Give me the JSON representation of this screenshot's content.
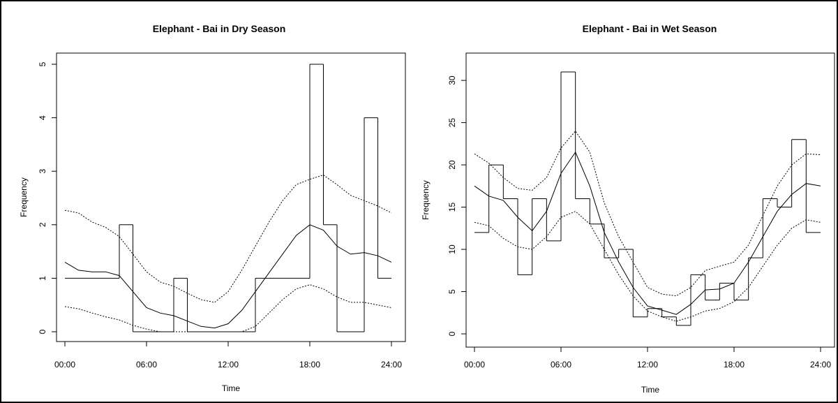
{
  "chart_data": [
    {
      "type": "line",
      "title": "Elephant - Bai in Dry Season",
      "xlabel": "Time",
      "ylabel": "Frequency",
      "xlim": [
        0,
        24
      ],
      "ylim": [
        0,
        5
      ],
      "x_tick_labels": [
        "00:00",
        "06:00",
        "12:00",
        "18:00",
        "24:00"
      ],
      "y_tick_labels": [
        "0",
        "1",
        "2",
        "3",
        "4",
        "5"
      ],
      "grid": false,
      "histogram": {
        "bin_hours": [
          0,
          1,
          2,
          3,
          4,
          5,
          6,
          7,
          8,
          9,
          10,
          11,
          12,
          13,
          14,
          15,
          16,
          17,
          18,
          19,
          20,
          21,
          22,
          23
        ],
        "values": [
          1,
          1,
          1,
          1,
          2,
          0,
          0,
          0,
          1,
          0,
          0,
          0,
          0,
          0,
          1,
          1,
          1,
          1,
          5,
          2,
          0,
          0,
          4,
          1
        ]
      },
      "series": [
        {
          "role": "fitted",
          "x": [
            0,
            1,
            2,
            3,
            4,
            5,
            6,
            7,
            8,
            9,
            10,
            11,
            12,
            13,
            14,
            15,
            16,
            17,
            18,
            19,
            20,
            21,
            22,
            23,
            24
          ],
          "y": [
            1.3,
            1.15,
            1.12,
            1.12,
            1.05,
            0.75,
            0.45,
            0.35,
            0.3,
            0.2,
            0.1,
            0.07,
            0.15,
            0.4,
            0.75,
            1.1,
            1.45,
            1.8,
            2.0,
            1.9,
            1.6,
            1.45,
            1.48,
            1.42,
            1.3
          ]
        },
        {
          "role": "upper",
          "x": [
            0,
            1,
            2,
            3,
            4,
            5,
            6,
            7,
            8,
            9,
            10,
            11,
            12,
            13,
            14,
            15,
            16,
            17,
            18,
            19,
            20,
            21,
            22,
            23,
            24
          ],
          "y": [
            2.27,
            2.22,
            2.05,
            1.95,
            1.78,
            1.45,
            1.12,
            0.93,
            0.85,
            0.72,
            0.6,
            0.55,
            0.75,
            1.15,
            1.6,
            2.05,
            2.45,
            2.75,
            2.85,
            2.93,
            2.75,
            2.55,
            2.45,
            2.35,
            2.22
          ]
        },
        {
          "role": "lower",
          "x": [
            0,
            1,
            2,
            3,
            4,
            5,
            6,
            7,
            8,
            9,
            10,
            11,
            12,
            13,
            14,
            15,
            16,
            17,
            18,
            19,
            20,
            21,
            22,
            23,
            24
          ],
          "y": [
            0.47,
            0.43,
            0.35,
            0.28,
            0.22,
            0.12,
            0.05,
            0.0,
            0.0,
            0.0,
            0.0,
            0.0,
            0.0,
            0.0,
            0.1,
            0.35,
            0.6,
            0.8,
            0.88,
            0.8,
            0.65,
            0.55,
            0.55,
            0.5,
            0.45
          ]
        }
      ]
    },
    {
      "type": "line",
      "title": "Elephant - Bai in Wet Season",
      "xlabel": "Time",
      "ylabel": "Frequency",
      "xlim": [
        0,
        24
      ],
      "ylim": [
        0,
        31
      ],
      "x_tick_labels": [
        "00:00",
        "06:00",
        "12:00",
        "18:00",
        "24:00"
      ],
      "y_tick_labels": [
        "0",
        "5",
        "10",
        "15",
        "20",
        "25",
        "30"
      ],
      "grid": false,
      "histogram": {
        "bin_hours": [
          0,
          1,
          2,
          3,
          4,
          5,
          6,
          7,
          8,
          9,
          10,
          11,
          12,
          13,
          14,
          15,
          16,
          17,
          18,
          19,
          20,
          21,
          22,
          23
        ],
        "values": [
          12,
          20,
          16,
          7,
          16,
          11,
          31,
          16,
          13,
          9,
          10,
          2,
          3,
          2,
          1,
          7,
          4,
          6,
          4,
          9,
          16,
          15,
          23,
          12
        ]
      },
      "series": [
        {
          "role": "fitted",
          "x": [
            0,
            1,
            2,
            3,
            4,
            5,
            6,
            7,
            8,
            9,
            10,
            11,
            12,
            13,
            14,
            15,
            16,
            17,
            18,
            19,
            20,
            21,
            22,
            23,
            24
          ],
          "y": [
            17.5,
            16.3,
            15.8,
            13.8,
            12.2,
            14.5,
            19.0,
            21.5,
            17.5,
            12.0,
            8.5,
            5.5,
            3.3,
            2.8,
            2.3,
            3.5,
            5.2,
            5.3,
            6.0,
            8.5,
            11.5,
            14.5,
            16.5,
            17.8,
            17.5
          ]
        },
        {
          "role": "upper",
          "x": [
            0,
            1,
            2,
            3,
            4,
            5,
            6,
            7,
            8,
            9,
            10,
            11,
            12,
            13,
            14,
            15,
            16,
            17,
            18,
            19,
            20,
            21,
            22,
            23,
            24
          ],
          "y": [
            21.3,
            20.2,
            18.5,
            17.2,
            17.0,
            18.5,
            22.0,
            24.0,
            21.5,
            15.5,
            11.5,
            8.5,
            5.5,
            4.7,
            4.5,
            5.5,
            7.5,
            8.0,
            8.5,
            10.5,
            14.0,
            17.5,
            20.0,
            21.3,
            21.2
          ]
        },
        {
          "role": "lower",
          "x": [
            0,
            1,
            2,
            3,
            4,
            5,
            6,
            7,
            8,
            9,
            10,
            11,
            12,
            13,
            14,
            15,
            16,
            17,
            18,
            19,
            20,
            21,
            22,
            23,
            24
          ],
          "y": [
            13.2,
            12.8,
            11.3,
            10.3,
            10.0,
            11.5,
            13.8,
            14.5,
            13.0,
            10.0,
            7.0,
            4.5,
            2.7,
            2.0,
            1.5,
            2.0,
            2.7,
            3.0,
            3.8,
            5.5,
            8.0,
            10.5,
            12.5,
            13.5,
            13.2
          ]
        }
      ]
    }
  ]
}
